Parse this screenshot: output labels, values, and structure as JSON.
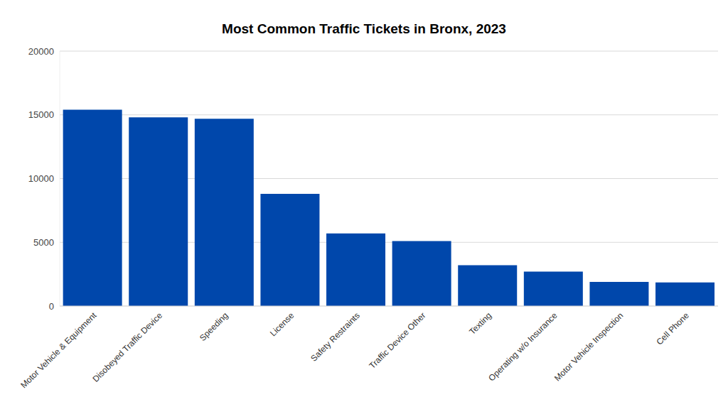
{
  "chart_data": {
    "type": "bar",
    "title": "Most Common Traffic Tickets in Bronx, 2023",
    "categories": [
      "Motor Vehicle & Equipment",
      "Disobeyed Traffic Device",
      "Speeding",
      "License",
      "Safety Restraints",
      "Traffic Device Other",
      "Texting",
      "Operating w/o Insurance",
      "Motor Vehicle Inspection",
      "Cell Phone"
    ],
    "values": [
      15400,
      14800,
      14700,
      8800,
      5700,
      5100,
      3200,
      2700,
      1900,
      1850
    ],
    "color": "#0047ab",
    "ylim": [
      0,
      20000
    ],
    "yticks": [
      0,
      5000,
      10000,
      15000,
      20000
    ],
    "grid": true
  }
}
